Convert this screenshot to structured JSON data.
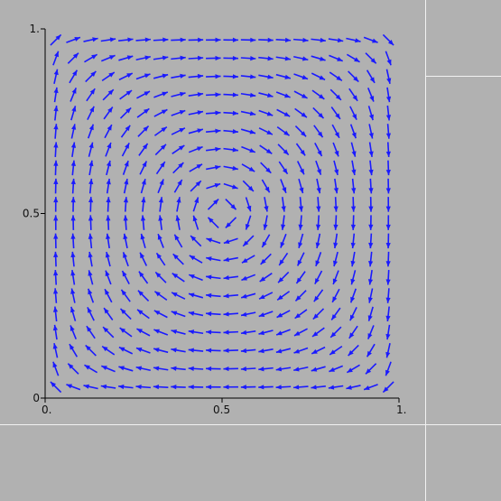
{
  "app": {
    "background": "#b1b1b1",
    "divider_color": "#f2f2f2"
  },
  "chart_data": {
    "type": "vector-field",
    "title": "",
    "xlabel": "",
    "ylabel": "",
    "xlim": [
      0,
      1
    ],
    "ylim": [
      0,
      1
    ],
    "x_ticks": [
      {
        "value": 0,
        "label": "0."
      },
      {
        "value": 0.5,
        "label": "0.5"
      },
      {
        "value": 1,
        "label": "1."
      }
    ],
    "y_ticks": [
      {
        "value": 0,
        "label": "0"
      },
      {
        "value": 0.5,
        "label": "0.5"
      },
      {
        "value": 1,
        "label": "1."
      }
    ],
    "field": {
      "expression": "u = -sin(pi*x)*cos(pi*y), v = cos(pi*x)*sin(pi*y)",
      "rotation": "clockwise",
      "center": [
        0.5,
        0.5
      ],
      "grid_n": 20,
      "range": [
        0.03,
        0.97
      ]
    },
    "arrow_color": "#1a1aff",
    "axis_color": "#000000",
    "grid": false
  }
}
